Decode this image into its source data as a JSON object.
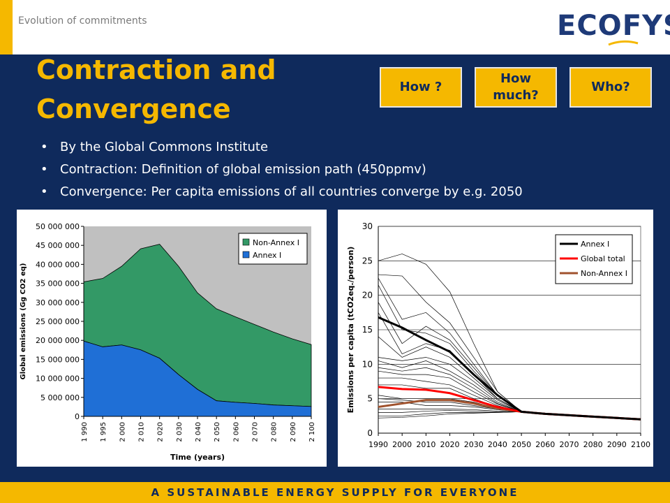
{
  "header": {
    "section_label": "Evolution of commitments"
  },
  "logo": {
    "text_eco": "ECO",
    "text_fys": "FYS"
  },
  "title": {
    "line1": "Contraction and",
    "line2": "Convergence"
  },
  "nav": [
    {
      "label": "How ?"
    },
    {
      "label": "How much?"
    },
    {
      "label": "Who?"
    }
  ],
  "bullets": [
    "By the Global Commons Institute",
    "Contraction: Definition of global emission path (450ppmv)",
    "Convergence: Per capita emissions of all countries converge by e.g. 2050"
  ],
  "footer": {
    "tagline": "A SUSTAINABLE ENERGY SUPPLY FOR EVERYONE"
  },
  "colors": {
    "navy": "#0f2a5c",
    "gold": "#f5b800",
    "non_annex": "#339966",
    "annex": "#1f6fd6"
  },
  "chart_data": [
    {
      "type": "area",
      "stacked": true,
      "x": [
        "1 990",
        "1 995",
        "2 000",
        "2 010",
        "2 020",
        "2 030",
        "2 040",
        "2 050",
        "2 060",
        "2 070",
        "2 080",
        "2 090",
        "2 100"
      ],
      "xlabel": "Time (years)",
      "ylabel": "Global emissions (Gg CO2 eq)",
      "ylim": [
        0,
        50000000
      ],
      "yticks": [
        "0",
        "5 000 000",
        "10 000 000",
        "15 000 000",
        "20 000 000",
        "25 000 000",
        "30 000 000",
        "35 000 000",
        "40 000 000",
        "45 000 000",
        "50 000 000"
      ],
      "legend": "top-right",
      "series": [
        {
          "name": "Annex I",
          "color": "#1f6fd6",
          "values": [
            19800000,
            18300000,
            18800000,
            17500000,
            15300000,
            11000000,
            7100000,
            4100000,
            3700000,
            3400000,
            3000000,
            2800000,
            2600000
          ]
        },
        {
          "name": "Non-Annex I",
          "color": "#339966",
          "values": [
            15600000,
            18000000,
            20700000,
            26600000,
            30000000,
            28500000,
            25400000,
            24200000,
            22500000,
            20800000,
            19200000,
            17600000,
            16300000
          ]
        }
      ]
    },
    {
      "type": "line",
      "x": [
        "1990",
        "2000",
        "2010",
        "2020",
        "2030",
        "2040",
        "2050",
        "2060",
        "2070",
        "2080",
        "2090",
        "2100"
      ],
      "ylabel": "Emissions per capita (tCO2eq./person)",
      "ylim": [
        0,
        30
      ],
      "yticks": [
        "0",
        "5",
        "10",
        "15",
        "20",
        "25",
        "30"
      ],
      "legend": "top-right",
      "grid": true,
      "series": [
        {
          "name": "Annex I",
          "color": "#000000",
          "values": [
            16.8,
            15.3,
            13.5,
            11.8,
            8.5,
            5.5,
            3.1,
            2.8,
            2.6,
            2.4,
            2.2,
            2.0
          ]
        },
        {
          "name": "Global total",
          "color": "#ff0000",
          "values": [
            6.7,
            6.4,
            6.3,
            5.8,
            4.8,
            3.8,
            3.1,
            2.8,
            2.6,
            2.4,
            2.2,
            2.0
          ]
        },
        {
          "name": "Non-Annex I",
          "color": "#a0522d",
          "values": [
            3.8,
            4.3,
            4.8,
            4.8,
            4.3,
            3.6,
            3.1,
            2.8,
            2.6,
            2.4,
            2.2,
            2.0
          ]
        }
      ],
      "country_lines": [
        [
          25.0,
          26.0,
          24.5,
          20.5,
          13.0,
          6.0,
          3.1
        ],
        [
          23.0,
          22.8,
          19.0,
          16.0,
          11.0,
          6.0,
          3.1
        ],
        [
          22.5,
          16.5,
          17.5,
          14.5,
          10.0,
          5.5,
          3.1
        ],
        [
          21.5,
          15.0,
          14.5,
          13.0,
          9.0,
          5.5,
          3.1
        ],
        [
          19.0,
          13.0,
          15.5,
          13.5,
          9.5,
          5.5,
          3.1
        ],
        [
          17.5,
          11.5,
          13.0,
          12.0,
          8.5,
          5.0,
          3.1
        ],
        [
          14.0,
          11.0,
          12.5,
          11.0,
          8.0,
          5.0,
          3.1
        ],
        [
          11.0,
          10.5,
          11.0,
          10.0,
          7.5,
          4.8,
          3.1
        ],
        [
          10.5,
          9.5,
          10.5,
          9.0,
          7.0,
          4.5,
          3.1
        ],
        [
          9.5,
          9.0,
          9.5,
          8.5,
          6.5,
          4.3,
          3.1
        ],
        [
          9.0,
          8.5,
          8.5,
          8.0,
          6.0,
          4.2,
          3.1
        ],
        [
          8.0,
          8.0,
          7.5,
          7.0,
          5.5,
          4.0,
          3.1
        ],
        [
          7.0,
          7.0,
          6.5,
          6.5,
          5.0,
          3.8,
          3.1
        ],
        [
          5.5,
          5.0,
          5.0,
          5.0,
          4.5,
          3.6,
          3.1
        ],
        [
          4.5,
          4.5,
          4.0,
          4.0,
          3.8,
          3.4,
          3.1
        ],
        [
          3.5,
          3.5,
          3.5,
          3.5,
          3.4,
          3.2,
          3.1
        ],
        [
          3.0,
          3.0,
          3.2,
          3.3,
          3.2,
          3.1,
          3.1
        ],
        [
          2.5,
          2.5,
          2.8,
          3.0,
          3.0,
          3.0,
          3.1
        ],
        [
          2.2,
          2.3,
          2.5,
          2.8,
          2.9,
          3.0,
          3.1
        ],
        [
          5.0,
          4.8,
          4.5,
          4.5,
          4.0,
          3.5,
          3.1
        ]
      ]
    }
  ]
}
